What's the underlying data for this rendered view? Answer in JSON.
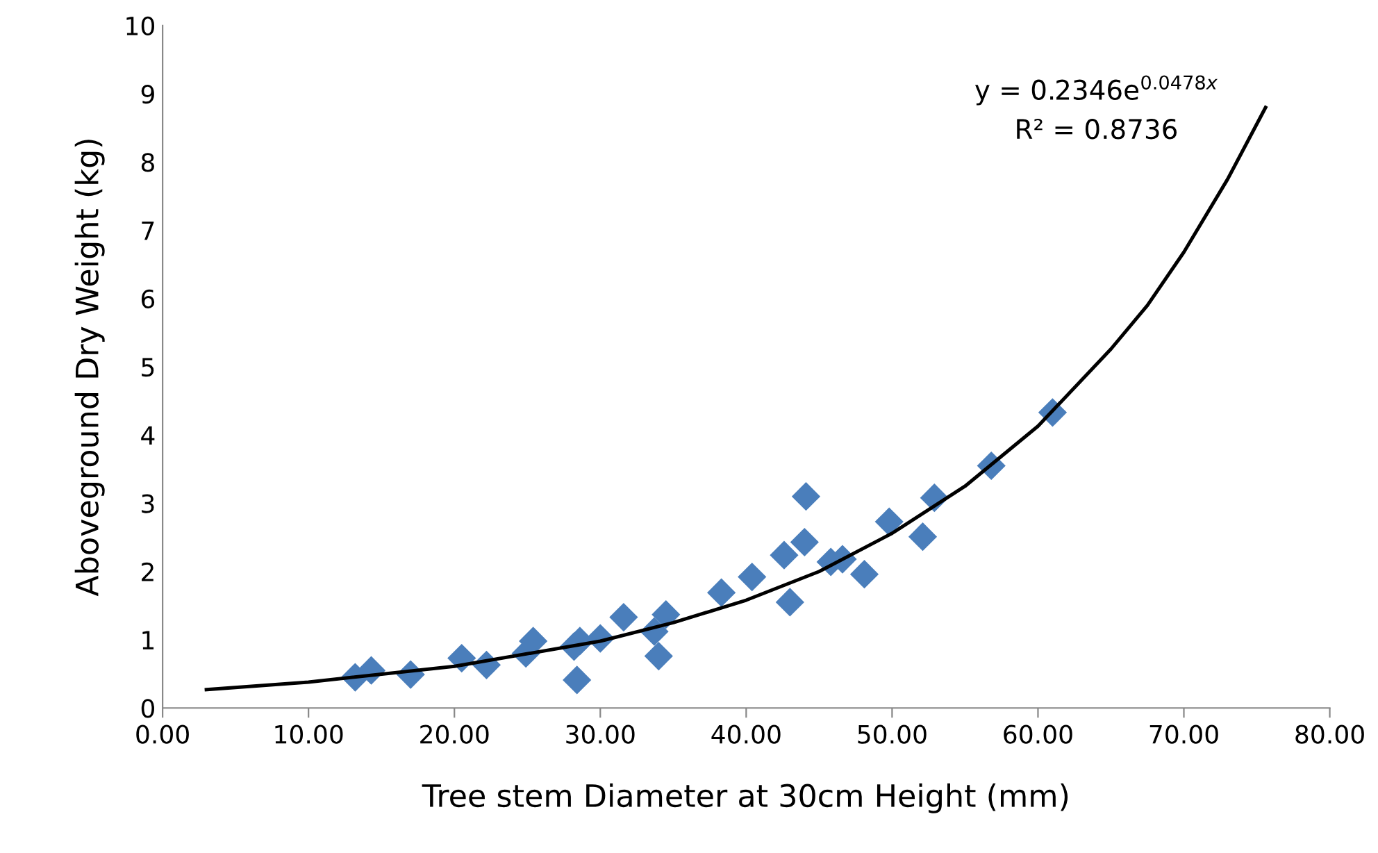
{
  "chart_data": {
    "type": "scatter",
    "xlabel": "Tree stem Diameter at 30cm Height (mm)",
    "ylabel": "Aboveground Dry Weight (kg)",
    "xlim": [
      0,
      80
    ],
    "ylim": [
      0,
      10
    ],
    "xticks": [
      {
        "value": 0,
        "label": "0.00"
      },
      {
        "value": 10,
        "label": "10.00"
      },
      {
        "value": 20,
        "label": "20.00"
      },
      {
        "value": 30,
        "label": "30.00"
      },
      {
        "value": 40,
        "label": "40.00"
      },
      {
        "value": 50,
        "label": "50.00"
      },
      {
        "value": 60,
        "label": "60.00"
      },
      {
        "value": 70,
        "label": "70.00"
      },
      {
        "value": 80,
        "label": "80.00"
      }
    ],
    "yticks": [
      0,
      1,
      2,
      3,
      4,
      5,
      6,
      7,
      8,
      9,
      10
    ],
    "grid": false,
    "legend": false,
    "annotations": [
      "y = 0.2346e$^{0.0478x}$",
      "R² = 0.8736"
    ],
    "series": [
      {
        "marker": "diamond",
        "color": "#4a7ebb",
        "x": [
          13.2,
          14.3,
          17.0,
          20.5,
          22.2,
          24.9,
          25.4,
          28.4,
          28.2,
          28.6,
          30.0,
          31.6,
          33.7,
          34.0,
          34.5,
          38.3,
          40.4,
          42.6,
          43.0,
          44.1,
          44.0,
          45.8,
          46.6,
          48.1,
          49.8,
          52.1,
          52.9,
          56.8,
          61.0
        ],
        "values": [
          0.45,
          0.55,
          0.49,
          0.73,
          0.63,
          0.8,
          0.98,
          0.41,
          0.9,
          0.98,
          1.02,
          1.33,
          1.12,
          0.76,
          1.37,
          1.69,
          1.92,
          2.24,
          1.55,
          3.1,
          2.43,
          2.14,
          2.18,
          1.96,
          2.73,
          2.51,
          3.08,
          3.55,
          4.33
        ]
      },
      {
        "type": "line",
        "color": "#000000",
        "x": [
          3,
          10,
          20,
          30,
          35,
          40,
          45,
          50,
          55,
          60,
          65,
          67.5,
          70,
          73,
          75.6
        ],
        "values": [
          0.27,
          0.38,
          0.61,
          0.98,
          1.25,
          1.58,
          2.0,
          2.56,
          3.25,
          4.13,
          5.26,
          5.9,
          6.68,
          7.75,
          8.8
        ]
      }
    ]
  }
}
